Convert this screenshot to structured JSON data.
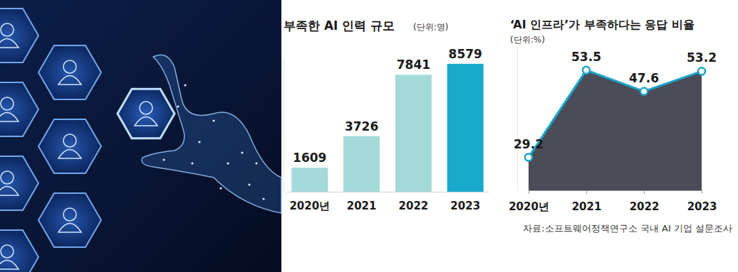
{
  "chart_data": [
    {
      "type": "bar",
      "title": "부족한 AI 인력 규모",
      "subtitle": "(단위:명)",
      "categories": [
        "2020년",
        "2021",
        "2022",
        "2023"
      ],
      "values": [
        1609,
        3726,
        7841,
        8579
      ],
      "colors": [
        "#a3d9d9",
        "#a3d9d9",
        "#a3d9d9",
        "#19a9cc"
      ],
      "ylim": [
        0,
        9000
      ],
      "data_labels": true,
      "tick_labels": "x"
    },
    {
      "type": "area",
      "title": "‘AI 인프라’가 부족하다는 응답 비율",
      "subtitle": "(단위:%)",
      "categories": [
        "2020년",
        "2021",
        "2022",
        "2023"
      ],
      "values": [
        29.2,
        53.5,
        47.6,
        53.2
      ],
      "color": "#1ba3c6",
      "marker": "circle",
      "ylim": [
        20,
        60
      ],
      "data_labels": true,
      "tick_labels": "x"
    }
  ],
  "source": "자료:소프트웨어정책연구소 국내 AI 기업 설문조사"
}
